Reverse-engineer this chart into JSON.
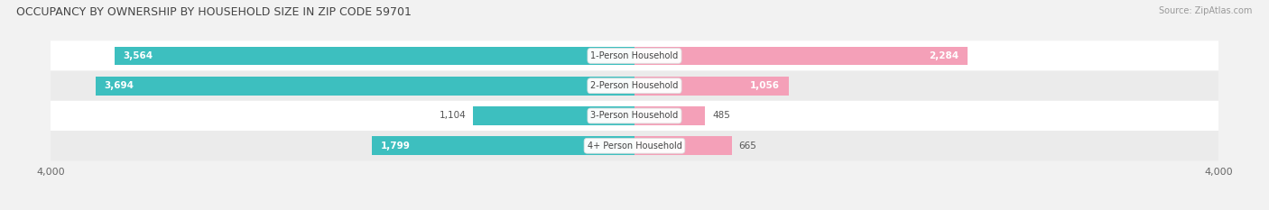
{
  "title": "OCCUPANCY BY OWNERSHIP BY HOUSEHOLD SIZE IN ZIP CODE 59701",
  "source": "Source: ZipAtlas.com",
  "categories": [
    "1-Person Household",
    "2-Person Household",
    "3-Person Household",
    "4+ Person Household"
  ],
  "owner_values": [
    3564,
    3694,
    1104,
    1799
  ],
  "renter_values": [
    2284,
    1056,
    485,
    665
  ],
  "max_val": 4000,
  "owner_color": "#3dbfbf",
  "renter_color": "#f4a0b8",
  "bg_color": "#f2f2f2",
  "row_colors": [
    "#ffffff",
    "#ebebeb",
    "#ffffff",
    "#ebebeb"
  ],
  "title_fontsize": 9,
  "source_fontsize": 7,
  "label_fontsize": 7.5,
  "tick_fontsize": 8,
  "legend_fontsize": 8,
  "category_fontsize": 7
}
